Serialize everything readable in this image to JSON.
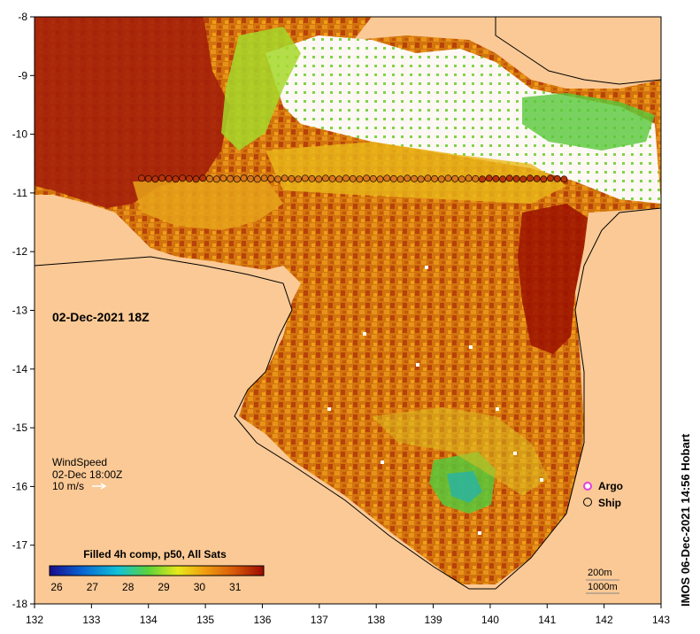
{
  "map": {
    "date_label": "02-Dec-2021 18Z",
    "lon_ticks": [
      "132",
      "133",
      "134",
      "135",
      "136",
      "137",
      "138",
      "139",
      "140",
      "141",
      "142",
      "143"
    ],
    "lat_ticks": [
      "-8",
      "-9",
      "-10",
      "-11",
      "-12",
      "-13",
      "-14",
      "-15",
      "-16",
      "-17",
      "-18"
    ],
    "colors": {
      "land": "#fbc995",
      "sst_warm": "#c85a0a",
      "sst_hot": "#a01a00",
      "sst_mid": "#e69a10",
      "sst_green": "#6cc61e",
      "cloud": "#ffffff"
    }
  },
  "wind": {
    "title": "WindSpeed",
    "time": "02-Dec 18:00Z",
    "scale": "10 m/s"
  },
  "legend": {
    "argo_label": "Argo",
    "ship_label": "Ship",
    "argo_color": "#e040e0"
  },
  "colorbar": {
    "title": "Filled 4h comp, p50, All Sats",
    "ticks": [
      "26",
      "27",
      "28",
      "29",
      "30",
      "31"
    ],
    "range": [
      25.8,
      31.8
    ],
    "stops": [
      "#1a0a8c",
      "#0a64d2",
      "#12c2d8",
      "#5cd23a",
      "#e8e81a",
      "#f0a010",
      "#d85a0a",
      "#9c0a00"
    ]
  },
  "depth": {
    "line1": "200m",
    "line2": "1000m"
  },
  "credit": "IMOS 06-Dec-2021 14:56 Hobart"
}
